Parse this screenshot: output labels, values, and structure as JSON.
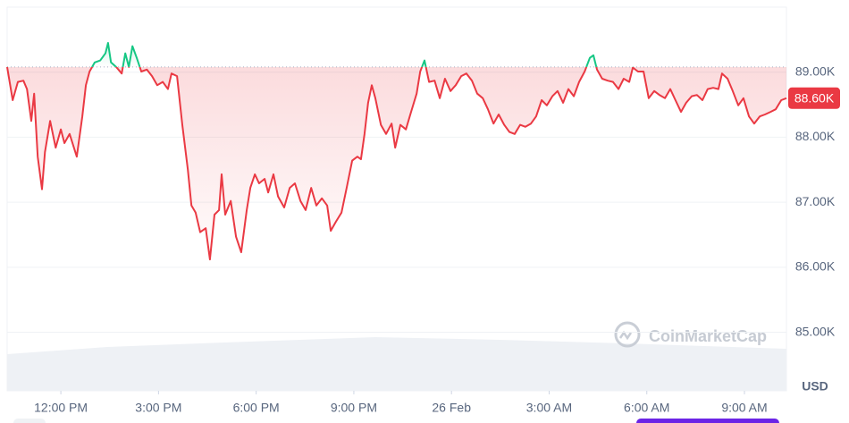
{
  "chart_data": {
    "type": "line",
    "x": [
      -1.65,
      -1.48,
      -1.32,
      -1.15,
      -1.04,
      -0.91,
      -0.82,
      -0.71,
      -0.58,
      -0.49,
      -0.33,
      -0.16,
      0,
      0.11,
      0.27,
      0.49,
      0.66,
      0.77,
      0.88,
      1.04,
      1.21,
      1.37,
      1.45,
      1.54,
      1.7,
      1.87,
      1.98,
      2.09,
      2.2,
      2.33,
      2.47,
      2.64,
      2.8,
      2.96,
      3.13,
      3.29,
      3.4,
      3.57,
      3.73,
      3.9,
      4.01,
      4.14,
      4.28,
      4.45,
      4.58,
      4.72,
      4.86,
      4.94,
      5.05,
      5.22,
      5.38,
      5.54,
      5.71,
      5.82,
      5.96,
      6.09,
      6.26,
      6.37,
      6.53,
      6.67,
      6.86,
      7.03,
      7.19,
      7.36,
      7.52,
      7.69,
      7.85,
      8.02,
      8.18,
      8.29,
      8.45,
      8.62,
      8.78,
      8.95,
      9.11,
      9.22,
      9.33,
      9.44,
      9.55,
      9.66,
      9.83,
      9.99,
      10.16,
      10.27,
      10.43,
      10.6,
      10.76,
      10.93,
      11.04,
      11.17,
      11.31,
      11.48,
      11.64,
      11.8,
      11.97,
      12.13,
      12.3,
      12.46,
      12.63,
      12.79,
      12.96,
      13.12,
      13.29,
      13.45,
      13.62,
      13.78,
      13.94,
      14.11,
      14.27,
      14.44,
      14.6,
      14.77,
      14.93,
      15.1,
      15.26,
      15.43,
      15.59,
      15.76,
      15.92,
      16.09,
      16.25,
      16.36,
      16.47,
      16.63,
      16.8,
      16.96,
      17.13,
      17.29,
      17.46,
      17.57,
      17.73,
      17.9,
      18.06,
      18.23,
      18.39,
      18.56,
      18.72,
      18.88,
      19.05,
      19.21,
      19.38,
      19.54,
      19.71,
      19.87,
      20.04,
      20.2,
      20.31,
      20.48,
      20.64,
      20.81,
      20.97,
      21.14,
      21.3,
      21.47,
      21.63,
      21.8,
      21.96,
      22.13,
      22.29
    ],
    "values": [
      89080,
      88570,
      88850,
      88870,
      88740,
      88250,
      88670,
      87700,
      87200,
      87770,
      88250,
      87840,
      88120,
      87910,
      88050,
      87700,
      88320,
      88800,
      89010,
      89150,
      89180,
      89290,
      89450,
      89150,
      89080,
      88980,
      89290,
      89080,
      89400,
      89220,
      89010,
      89040,
      88940,
      88800,
      88850,
      88740,
      88980,
      88940,
      88190,
      87500,
      86950,
      86840,
      86540,
      86600,
      86120,
      86810,
      86880,
      87430,
      86810,
      87020,
      86470,
      86230,
      86880,
      87220,
      87430,
      87290,
      87360,
      87150,
      87430,
      87090,
      86920,
      87220,
      87290,
      87020,
      86880,
      87220,
      86950,
      87060,
      86950,
      86560,
      86700,
      86840,
      87220,
      87640,
      87700,
      87660,
      88050,
      88530,
      88800,
      88600,
      88190,
      88050,
      88210,
      87840,
      88190,
      88120,
      88390,
      88670,
      89010,
      89180,
      88850,
      88870,
      88600,
      88900,
      88710,
      88800,
      88940,
      88980,
      88870,
      88670,
      88600,
      88430,
      88210,
      88350,
      88190,
      88080,
      88050,
      88190,
      88160,
      88210,
      88320,
      88570,
      88490,
      88630,
      88710,
      88530,
      88740,
      88630,
      88850,
      89010,
      89220,
      89260,
      89040,
      88900,
      88870,
      88850,
      88740,
      88900,
      88850,
      89070,
      89010,
      89010,
      88600,
      88710,
      88650,
      88600,
      88740,
      88570,
      88390,
      88530,
      88630,
      88650,
      88570,
      88740,
      88760,
      88740,
      88980,
      88900,
      88710,
      88490,
      88600,
      88320,
      88210,
      88320,
      88350,
      88390,
      88430,
      88570,
      88600
    ],
    "colors": {
      "below": "#ea3943",
      "above": "#16c784"
    },
    "reference_line": 89080,
    "current_price": {
      "value": 88600,
      "label": "88.60K"
    },
    "xlim": [
      -1.65,
      22.29
    ],
    "xticks": [
      {
        "value": 0,
        "label": "12:00 PM"
      },
      {
        "value": 3,
        "label": "3:00 PM"
      },
      {
        "value": 6,
        "label": "6:00 PM"
      },
      {
        "value": 9,
        "label": "9:00 PM"
      },
      {
        "value": 12,
        "label": "26 Feb"
      },
      {
        "value": 15,
        "label": "3:00 AM"
      },
      {
        "value": 18,
        "label": "6:00 AM"
      },
      {
        "value": 21,
        "label": "9:00 AM"
      }
    ],
    "ylim": [
      84100,
      90000
    ],
    "yticks": [
      {
        "value": 89000,
        "label": "89.00K"
      },
      {
        "value": 88000,
        "label": "88.00K"
      },
      {
        "value": 87000,
        "label": "87.00K"
      },
      {
        "value": 86000,
        "label": "86.00K"
      },
      {
        "value": 85000,
        "label": "85.00K"
      }
    ],
    "y_unit": "USD",
    "watermark": "CoinMarketCap",
    "grid": true
  }
}
